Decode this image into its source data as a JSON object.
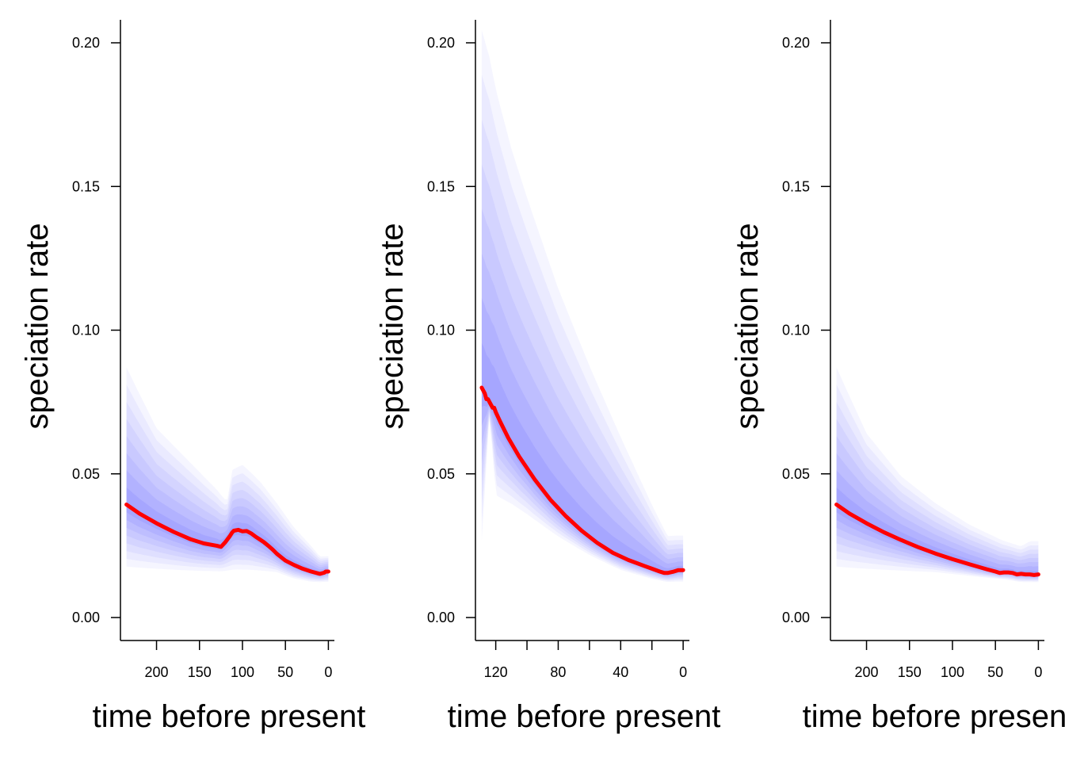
{
  "chart_data": [
    {
      "type": "area",
      "panel": "left",
      "xlabel": "time before present",
      "ylabel": "speciation rate",
      "xlim": [
        242,
        -7
      ],
      "ylim": [
        -0.008,
        0.208
      ],
      "x_ticks": [
        200,
        150,
        100,
        50,
        0
      ],
      "y_ticks": [
        "0.00",
        "0.05",
        "0.10",
        "0.15",
        "0.20"
      ],
      "y_tick_values": [
        0,
        0.05,
        0.1,
        0.15,
        0.2
      ],
      "x_axis_range": [
        240,
        -2
      ],
      "y_axis_range": [
        -0.008,
        0.208
      ],
      "series": [
        {
          "name": "mean speciation rate",
          "color": "#ff0000",
          "x": [
            235,
            220,
            200,
            180,
            160,
            145,
            130,
            125,
            120,
            115,
            112,
            110,
            105,
            100,
            95,
            90,
            85,
            80,
            75,
            70,
            65,
            60,
            55,
            50,
            40,
            30,
            20,
            10,
            5,
            3,
            0
          ],
          "y": [
            0.0393,
            0.0362,
            0.0328,
            0.0298,
            0.0272,
            0.0258,
            0.025,
            0.0246,
            0.0262,
            0.0282,
            0.0296,
            0.0302,
            0.0305,
            0.03,
            0.0301,
            0.0293,
            0.0282,
            0.0272,
            0.0262,
            0.025,
            0.0237,
            0.0222,
            0.021,
            0.0198,
            0.0183,
            0.017,
            0.016,
            0.0152,
            0.0156,
            0.016,
            0.016
          ]
        },
        {
          "name": "credible interval",
          "color": "#0000ff",
          "x": [
            235,
            200,
            160,
            130,
            118,
            112,
            100,
            80,
            60,
            40,
            20,
            10,
            0
          ],
          "lower": [
            0.015,
            0.015,
            0.015,
            0.015,
            0.015,
            0.015,
            0.015,
            0.015,
            0.015,
            0.013,
            0.012,
            0.012,
            0.012
          ],
          "upper": [
            0.093,
            0.07,
            0.057,
            0.047,
            0.042,
            0.054,
            0.056,
            0.05,
            0.042,
            0.033,
            0.026,
            0.022,
            0.022
          ]
        }
      ]
    },
    {
      "type": "area",
      "panel": "middle",
      "xlabel": "time before present",
      "ylabel": "speciation rate",
      "xlim": [
        133,
        -4
      ],
      "ylim": [
        -0.008,
        0.208
      ],
      "x_ticks": [
        120,
        80,
        40,
        0
      ],
      "x_minor_ticks": [
        100,
        60,
        20
      ],
      "y_ticks": [
        "0.00",
        "0.05",
        "0.10",
        "0.15",
        "0.20"
      ],
      "y_tick_values": [
        0,
        0.05,
        0.1,
        0.15,
        0.2
      ],
      "x_axis_range": [
        131,
        -1
      ],
      "y_axis_range": [
        -0.008,
        0.208
      ],
      "series": [
        {
          "name": "mean speciation rate",
          "color": "#ff0000",
          "x": [
            129,
            127,
            126,
            125,
            123,
            122,
            121,
            120,
            117,
            112,
            105,
            95,
            85,
            75,
            65,
            55,
            45,
            35,
            30,
            25,
            20,
            15,
            12,
            10,
            6,
            3,
            0
          ],
          "y": [
            0.08,
            0.078,
            0.076,
            0.076,
            0.074,
            0.073,
            0.073,
            0.0715,
            0.068,
            0.0625,
            0.056,
            0.048,
            0.041,
            0.0352,
            0.0302,
            0.026,
            0.0225,
            0.02,
            0.019,
            0.018,
            0.017,
            0.016,
            0.0155,
            0.0155,
            0.016,
            0.0165,
            0.0165
          ]
        },
        {
          "name": "credible interval",
          "color": "#0000ff",
          "x": [
            129,
            124,
            120,
            110,
            100,
            80,
            60,
            40,
            20,
            10,
            0
          ],
          "lower": [
            0.02,
            0.07,
            0.039,
            0.037,
            0.034,
            0.027,
            0.021,
            0.016,
            0.013,
            0.012,
            0.012
          ],
          "upper": [
            0.22,
            0.21,
            0.198,
            0.176,
            0.158,
            0.124,
            0.095,
            0.068,
            0.042,
            0.03,
            0.03
          ]
        }
      ]
    },
    {
      "type": "area",
      "panel": "right",
      "xlabel": "time before present",
      "ylabel": "speciation rate",
      "xlim": [
        242,
        -7
      ],
      "ylim": [
        -0.008,
        0.208
      ],
      "x_ticks": [
        200,
        150,
        100,
        50,
        0
      ],
      "y_ticks": [
        "0.00",
        "0.05",
        "0.10",
        "0.15",
        "0.20"
      ],
      "y_tick_values": [
        0,
        0.05,
        0.1,
        0.15,
        0.2
      ],
      "x_axis_range": [
        240,
        -2
      ],
      "y_axis_range": [
        -0.008,
        0.208
      ],
      "series": [
        {
          "name": "mean speciation rate",
          "color": "#ff0000",
          "x": [
            235,
            220,
            200,
            180,
            160,
            140,
            120,
            100,
            80,
            60,
            50,
            45,
            40,
            35,
            30,
            25,
            20,
            15,
            10,
            5,
            0
          ],
          "y": [
            0.0393,
            0.0362,
            0.0328,
            0.0297,
            0.027,
            0.0245,
            0.0223,
            0.0203,
            0.0185,
            0.0168,
            0.016,
            0.0155,
            0.0157,
            0.0157,
            0.0155,
            0.015,
            0.0152,
            0.015,
            0.015,
            0.0148,
            0.015
          ]
        },
        {
          "name": "credible interval",
          "color": "#0000ff",
          "x": [
            235,
            200,
            160,
            120,
            80,
            40,
            20,
            10,
            0
          ],
          "lower": [
            0.015,
            0.015,
            0.015,
            0.015,
            0.014,
            0.013,
            0.012,
            0.012,
            0.012
          ],
          "upper": [
            0.093,
            0.068,
            0.052,
            0.042,
            0.034,
            0.028,
            0.026,
            0.028,
            0.028
          ]
        }
      ]
    }
  ]
}
